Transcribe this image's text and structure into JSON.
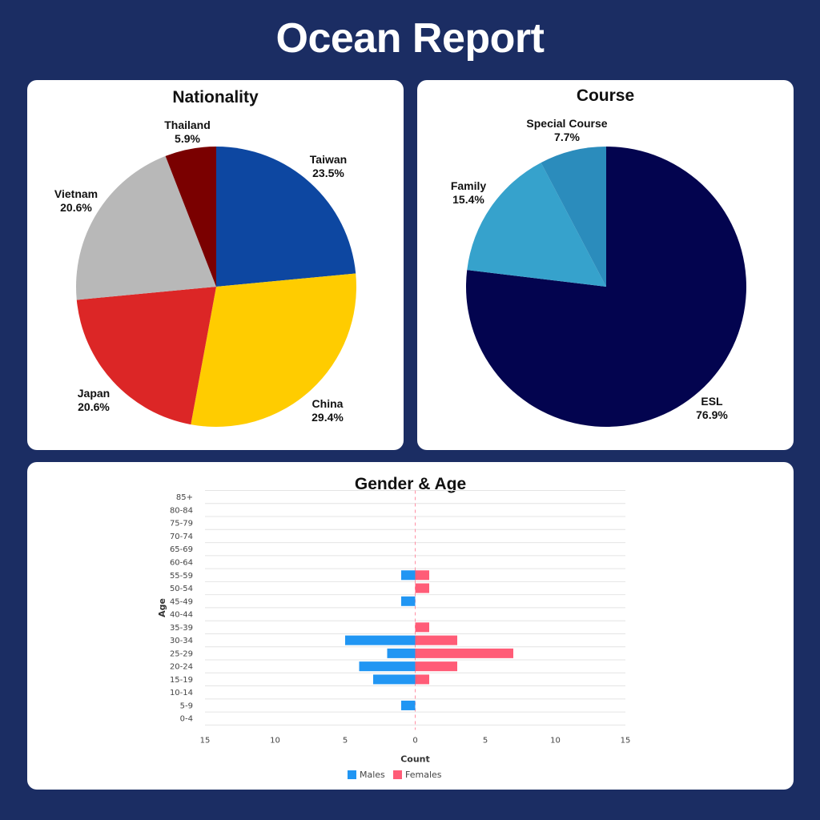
{
  "title": "Ocean Report",
  "chart_data": [
    {
      "type": "pie",
      "title": "Nationality",
      "slices": [
        {
          "label": "Taiwan",
          "value": 23.5,
          "display": "23.5%",
          "color": "#0d47a1"
        },
        {
          "label": "China",
          "value": 29.4,
          "display": "29.4%",
          "color": "#ffcc00"
        },
        {
          "label": "Japan",
          "value": 20.6,
          "display": "20.6%",
          "color": "#dc2626"
        },
        {
          "label": "Vietnam",
          "value": 20.6,
          "display": "20.6%",
          "color": "#b8b8b8"
        },
        {
          "label": "Thailand",
          "value": 5.9,
          "display": "5.9%",
          "color": "#7a0000"
        }
      ]
    },
    {
      "type": "pie",
      "title": "Course",
      "slices": [
        {
          "label": "ESL",
          "value": 76.9,
          "display": "76.9%",
          "color": "#03044f"
        },
        {
          "label": "Family",
          "value": 15.4,
          "display": "15.4%",
          "color": "#36a2cc"
        },
        {
          "label": "Special Course",
          "value": 7.7,
          "display": "7.7%",
          "color": "#2b8cbc"
        }
      ]
    },
    {
      "type": "bar",
      "orientation": "horizontal",
      "title": "Gender & Age",
      "xlabel": "Count",
      "ylabel": "Age",
      "xlim": [
        -15,
        15
      ],
      "xticks": [
        -15,
        -10,
        -5,
        0,
        5,
        10,
        15
      ],
      "xtick_labels": [
        "15",
        "10",
        "5",
        "0",
        "5",
        "10",
        "15"
      ],
      "categories": [
        "85+",
        "80-84",
        "75-79",
        "70-74",
        "65-69",
        "60-64",
        "55-59",
        "50-54",
        "45-49",
        "40-44",
        "35-39",
        "30-34",
        "25-29",
        "20-24",
        "15-19",
        "10-14",
        "5-9",
        "0-4"
      ],
      "series": [
        {
          "name": "Males",
          "color": "#2196f3",
          "values": [
            0,
            0,
            0,
            0,
            0,
            0,
            1,
            0,
            1,
            0,
            0,
            5,
            2,
            4,
            3,
            0,
            1,
            0
          ]
        },
        {
          "name": "Females",
          "color": "#ff5c77",
          "values": [
            0,
            0,
            0,
            0,
            0,
            0,
            1,
            1,
            0,
            0,
            1,
            3,
            7,
            3,
            1,
            0,
            0,
            0
          ]
        }
      ],
      "legend": "bottom-center",
      "grid": true
    }
  ]
}
